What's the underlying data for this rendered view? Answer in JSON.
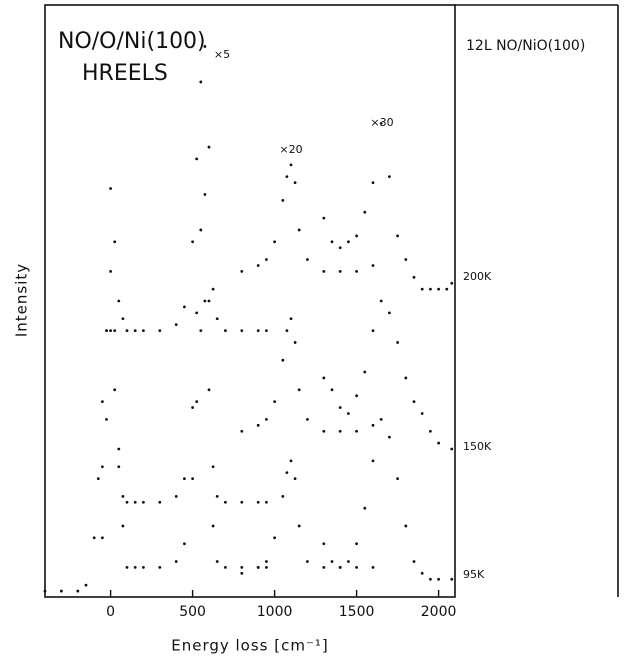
{
  "chart_data": {
    "type": "scatter",
    "title": "NO/O/Ni(100)",
    "subtitle": "HREELS",
    "side_title": "12L NO/NiO(100)",
    "x_label": "Energy loss [cm⁻¹]",
    "y_label": "Intensity",
    "xlim": [
      -400,
      2100
    ],
    "ylim": [
      0,
      100
    ],
    "xticks": [
      0,
      500,
      1000,
      1500,
      2000
    ],
    "color": "#111111",
    "annotations": [
      "×5",
      "×20",
      "×30"
    ],
    "spectra": [
      {
        "label": "200K",
        "segments": [
          {
            "x": [
              -50,
              -25,
              0,
              25,
              50,
              75,
              100,
              150,
              200,
              300,
              400,
              450,
              500,
              525,
              550,
              575,
              600,
              625,
              650,
              700,
              800,
              900,
              950
            ],
            "values": [
              22,
              45,
              69,
              60,
              50,
              47,
              45,
              45,
              45,
              45,
              46,
              49,
              60,
              74,
              87,
              93,
              76,
              52,
              47,
              45,
              45,
              45,
              45
            ]
          },
          {
            "x": [
              800,
              900,
              950,
              1000,
              1050,
              1075,
              1100,
              1125,
              1150,
              1200,
              1300,
              1400,
              1500,
              1600
            ],
            "values": [
              55,
              56,
              57,
              60,
              67,
              71,
              73,
              70,
              62,
              57,
              55,
              55,
              55,
              56
            ]
          },
          {
            "x": [
              1300,
              1350,
              1400,
              1450,
              1500,
              1550,
              1600,
              1650,
              1700,
              1750,
              1800,
              1850,
              1900,
              1950,
              2000,
              2050,
              2080
            ],
            "values": [
              64,
              60,
              59,
              60,
              61,
              65,
              70,
              80,
              71,
              61,
              57,
              54,
              52,
              52,
              52,
              52,
              53
            ]
          }
        ]
      },
      {
        "label": "150K",
        "segments": [
          {
            "x": [
              -50,
              -25,
              0,
              25,
              50,
              75,
              100,
              150,
              200,
              300,
              400,
              450,
              500,
              525,
              550,
              575,
              600,
              625,
              650,
              700,
              800,
              900,
              950
            ],
            "values": [
              10,
              30,
              45,
              35,
              22,
              17,
              16,
              16,
              16,
              16,
              17,
              20,
              32,
              48,
              62,
              68,
              50,
              22,
              17,
              16,
              16,
              16,
              16
            ]
          },
          {
            "x": [
              800,
              900,
              950,
              1000,
              1050,
              1075,
              1100,
              1125,
              1150,
              1200,
              1300,
              1400,
              1500,
              1600
            ],
            "values": [
              28,
              29,
              30,
              33,
              40,
              45,
              47,
              43,
              35,
              30,
              28,
              28,
              28,
              29
            ]
          },
          {
            "x": [
              1300,
              1350,
              1400,
              1450,
              1500,
              1550,
              1600,
              1650,
              1700,
              1750,
              1800,
              1850,
              1900,
              1950,
              2000,
              2080
            ],
            "values": [
              37,
              35,
              32,
              31,
              34,
              38,
              45,
              50,
              48,
              43,
              37,
              33,
              31,
              28,
              26,
              25
            ]
          }
        ]
      },
      {
        "label": "95K",
        "segments": [
          {
            "x": [
              -400,
              -300,
              -200,
              -150,
              -100,
              -75,
              -50,
              -25,
              0,
              25,
              50,
              75,
              100,
              150,
              200,
              300,
              400,
              450,
              500,
              525,
              550,
              575,
              600,
              625,
              650,
              700,
              800,
              900,
              950
            ],
            "values": [
              1,
              1,
              1,
              2,
              10,
              20,
              33,
              45,
              55,
              45,
              25,
              12,
              5,
              5,
              5,
              5,
              6,
              9,
              20,
              33,
              45,
              50,
              35,
              12,
              6,
              5,
              5,
              5,
              5
            ]
          },
          {
            "x": [
              800,
              900,
              950,
              1000,
              1050,
              1075,
              1100,
              1125,
              1150,
              1200,
              1300,
              1400,
              1500,
              1600
            ],
            "values": [
              4,
              5,
              6,
              10,
              17,
              21,
              23,
              20,
              12,
              6,
              5,
              5,
              5,
              5
            ]
          },
          {
            "x": [
              1300,
              1350,
              1400,
              1450,
              1500,
              1550,
              1600,
              1650,
              1700,
              1750,
              1800,
              1850,
              1900,
              1950,
              2000,
              2080
            ],
            "values": [
              9,
              6,
              5,
              6,
              9,
              15,
              23,
              30,
              27,
              20,
              12,
              6,
              4,
              3,
              3,
              3
            ]
          }
        ]
      }
    ]
  }
}
